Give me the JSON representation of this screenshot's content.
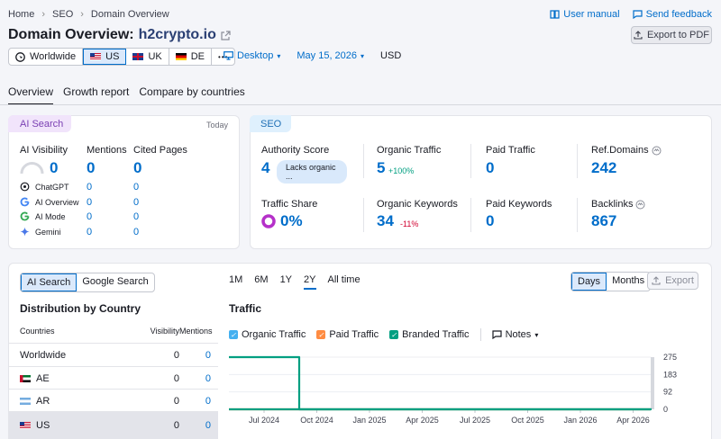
{
  "breadcrumb": [
    "Home",
    "SEO",
    "Domain Overview"
  ],
  "top_links": {
    "manual": "User manual",
    "feedback": "Send feedback"
  },
  "title": {
    "prefix": "Domain Overview:",
    "domain": "h2crypto.io"
  },
  "export_pdf": "Export to PDF",
  "databases": [
    "Worldwide",
    "US",
    "UK",
    "DE"
  ],
  "more": "•••",
  "device": "Desktop",
  "date": "May 15, 2026",
  "currency": "USD",
  "tabs": [
    "Overview",
    "Growth report",
    "Compare by countries"
  ],
  "ai": {
    "badge": "AI Search",
    "today": "Today",
    "visibility_label": "AI Visibility",
    "visibility": "0",
    "mentions_label": "Mentions",
    "mentions": "0",
    "cited_label": "Cited Pages",
    "cited": "0",
    "engines": [
      {
        "name": "ChatGPT",
        "mentions": "0",
        "cited": "0"
      },
      {
        "name": "AI Overview",
        "mentions": "0",
        "cited": "0"
      },
      {
        "name": "AI Mode",
        "mentions": "0",
        "cited": "0"
      },
      {
        "name": "Gemini",
        "mentions": "0",
        "cited": "0"
      }
    ]
  },
  "seo": {
    "badge": "SEO",
    "authority_label": "Authority Score",
    "authority": "4",
    "authority_pill": "Lacks organic ...",
    "organic_traffic_label": "Organic Traffic",
    "organic_traffic": "5",
    "organic_traffic_delta": "+100%",
    "paid_traffic_label": "Paid Traffic",
    "paid_traffic": "0",
    "ref_domains_label": "Ref.Domains",
    "ref_domains": "242",
    "traffic_share_label": "Traffic Share",
    "traffic_share": "0%",
    "organic_kw_label": "Organic Keywords",
    "organic_kw": "34",
    "organic_kw_delta": "-11%",
    "paid_kw_label": "Paid Keywords",
    "paid_kw": "0",
    "backlinks_label": "Backlinks",
    "backlinks": "867"
  },
  "search_toggle": [
    "AI Search",
    "Google Search"
  ],
  "distribution": {
    "title": "Distribution by Country",
    "headers": [
      "Countries",
      "Visibility",
      "Mentions"
    ],
    "rows": [
      {
        "country": "Worldwide",
        "visibility": "0",
        "mentions": "0"
      },
      {
        "country": "AE",
        "visibility": "0",
        "mentions": "0"
      },
      {
        "country": "AR",
        "visibility": "0",
        "mentions": "0"
      },
      {
        "country": "US",
        "visibility": "0",
        "mentions": "0"
      }
    ]
  },
  "ranges": [
    "1M",
    "6M",
    "1Y",
    "2Y",
    "All time"
  ],
  "granularity": [
    "Days",
    "Months"
  ],
  "export": "Export",
  "traffic_title": "Traffic",
  "legend": [
    "Organic Traffic",
    "Paid Traffic",
    "Branded Traffic"
  ],
  "notes": "Notes",
  "colors": {
    "organic": "#44b0f0",
    "paid": "#ff8c42",
    "branded": "#009f81",
    "accent": "#006dca"
  },
  "chart_data": {
    "type": "line",
    "x_ticks": [
      "Jul 2024",
      "Oct 2024",
      "Jan 2025",
      "Apr 2025",
      "Jul 2025",
      "Oct 2025",
      "Jan 2026",
      "Apr 2026"
    ],
    "y_ticks": [
      "275",
      "183",
      "92",
      "0"
    ],
    "ylim": [
      0,
      275
    ],
    "series": [
      {
        "name": "Organic Traffic",
        "points": [
          [
            "May 2024",
            275
          ],
          [
            "Sep 2024",
            275
          ],
          [
            "Sep 2024",
            0
          ],
          [
            "May 2026",
            0
          ],
          [
            "May 2026",
            5
          ]
        ]
      },
      {
        "name": "Branded Traffic",
        "points": [
          [
            "May 2024",
            0
          ],
          [
            "May 2026",
            0
          ]
        ]
      },
      {
        "name": "Paid Traffic",
        "points": [
          [
            "May 2024",
            0
          ],
          [
            "May 2026",
            0
          ]
        ]
      }
    ]
  }
}
